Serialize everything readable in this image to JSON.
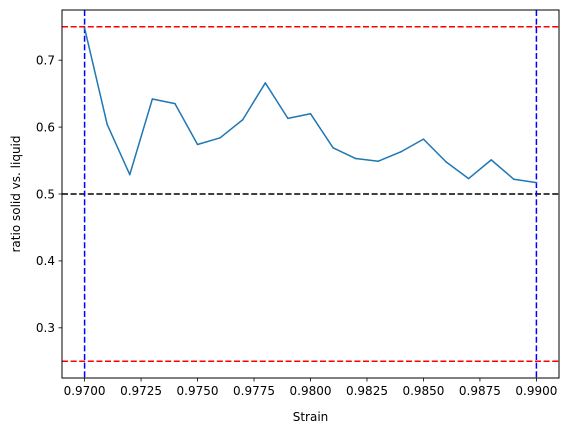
{
  "chart_data": {
    "type": "line",
    "title": "",
    "xlabel": "Strain",
    "ylabel": "ratio solid vs. liquid",
    "xlim": [
      0.969,
      0.991
    ],
    "ylim": [
      0.225,
      0.775
    ],
    "grid": false,
    "legend": "none",
    "xticks": [
      0.97,
      0.9725,
      0.975,
      0.9775,
      0.98,
      0.9825,
      0.985,
      0.9875,
      0.99
    ],
    "xtick_labels": [
      "0.9700",
      "0.9725",
      "0.9750",
      "0.9775",
      "0.9800",
      "0.9825",
      "0.9850",
      "0.9875",
      "0.9900"
    ],
    "yticks": [
      0.3,
      0.4,
      0.5,
      0.6,
      0.7
    ],
    "ytick_labels": [
      "0.3",
      "0.4",
      "0.5",
      "0.6",
      "0.7"
    ],
    "series": [
      {
        "color": "#1f77b4",
        "x": [
          0.97,
          0.971,
          0.972,
          0.973,
          0.974,
          0.975,
          0.976,
          0.977,
          0.978,
          0.979,
          0.98,
          0.981,
          0.982,
          0.983,
          0.984,
          0.985,
          0.986,
          0.987,
          0.988,
          0.989,
          0.99
        ],
        "y": [
          0.748,
          0.604,
          0.529,
          0.642,
          0.635,
          0.574,
          0.584,
          0.611,
          0.666,
          0.613,
          0.62,
          0.569,
          0.553,
          0.549,
          0.563,
          0.582,
          0.548,
          0.523,
          0.551,
          0.522,
          0.517
        ]
      }
    ],
    "hlines": [
      {
        "y": 0.75,
        "color": "#ff0000",
        "style": "dashed"
      },
      {
        "y": 0.5,
        "color": "#000000",
        "style": "dashed"
      },
      {
        "y": 0.25,
        "color": "#ff0000",
        "style": "dashed"
      }
    ],
    "vlines": [
      {
        "x": 0.97,
        "color": "#0000ff",
        "style": "dashed"
      },
      {
        "x": 0.99,
        "color": "#0000ff",
        "style": "dashed"
      }
    ]
  }
}
